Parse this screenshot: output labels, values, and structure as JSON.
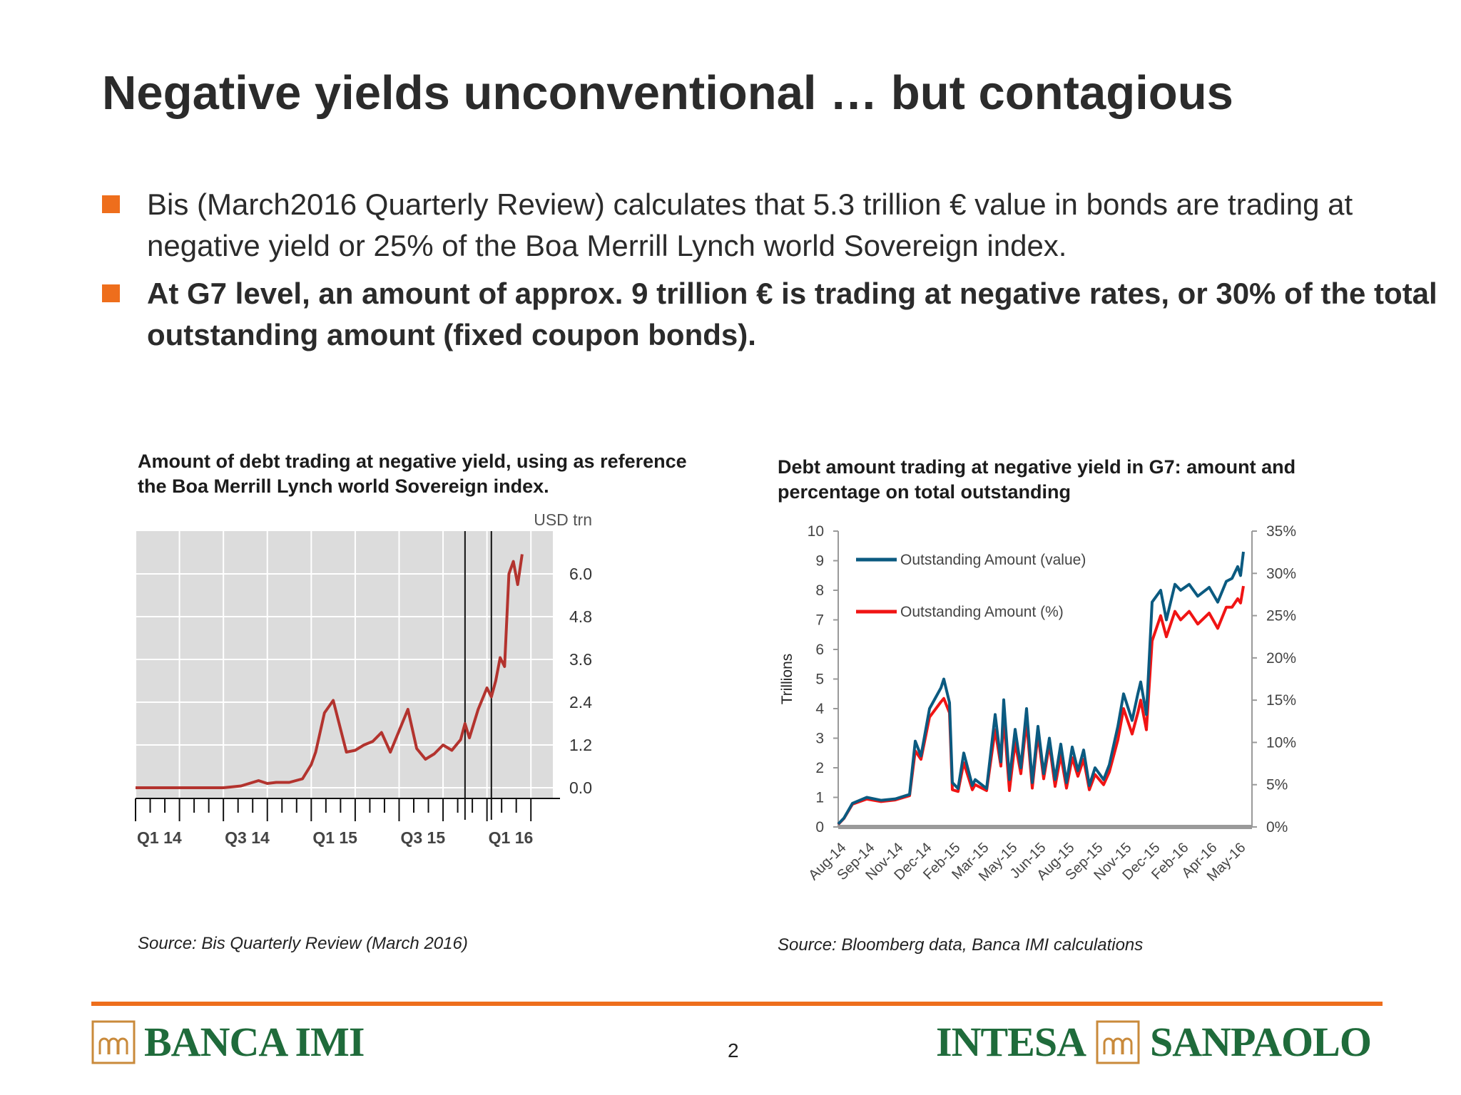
{
  "title": "Negative yields unconventional … but contagious",
  "bullets": [
    "Bis (March2016 Quarterly Review) calculates that 5.3 trillion € value in bonds are trading at negative yield or 25% of the Boa Merrill Lynch world Sovereign index.",
    "At G7 level, an amount of approx. 9 trillion € is trading at negative rates, or 30% of the total outstanding amount (fixed coupon bonds)."
  ],
  "colors": {
    "accent": "#ee6e1c",
    "bis_line": "#b3332e",
    "g7_value": "#0b5a80",
    "g7_pct": "#f01414",
    "logo_green": "#1f6b3b"
  },
  "chart_data": [
    {
      "type": "line",
      "title": "Amount of debt trading at negative yield, using as reference the Boa Merrill Lynch world Sovereign index.",
      "unit_label": "USD trn",
      "x_tick_labels": [
        "Q1 14",
        "Q3 14",
        "Q1 15",
        "Q3 15",
        "Q1 16"
      ],
      "y_ticks": [
        "0.0",
        "1.2",
        "2.4",
        "3.6",
        "4.8",
        "6.0"
      ],
      "ylim": [
        -0.3,
        7.2
      ],
      "xlim": [
        0,
        9.5
      ],
      "grid": true,
      "vertical_markers": [
        7.5,
        8.1
      ],
      "series": [
        {
          "x": [
            0,
            0.5,
            1.0,
            1.5,
            2.0,
            2.4,
            2.8,
            3.0,
            3.2,
            3.5,
            3.8,
            4.0,
            4.1,
            4.3,
            4.5,
            4.8,
            5.0,
            5.2,
            5.4,
            5.6,
            5.8,
            6.0,
            6.2,
            6.4,
            6.6,
            6.8,
            7.0,
            7.2,
            7.4,
            7.5,
            7.6,
            7.8,
            8.0,
            8.1,
            8.2,
            8.3,
            8.4,
            8.5,
            8.6,
            8.7,
            8.8
          ],
          "y": [
            0.0,
            0.0,
            0.0,
            0.0,
            0.0,
            0.05,
            0.2,
            0.12,
            0.15,
            0.15,
            0.25,
            0.65,
            1.0,
            2.1,
            2.45,
            1.0,
            1.05,
            1.2,
            1.3,
            1.55,
            1.0,
            1.6,
            2.2,
            1.1,
            0.8,
            0.95,
            1.2,
            1.05,
            1.35,
            1.8,
            1.4,
            2.2,
            2.8,
            2.55,
            3.0,
            3.65,
            3.4,
            6.0,
            6.35,
            5.7,
            6.55
          ]
        }
      ]
    },
    {
      "type": "line",
      "title": "Debt amount trading at negative yield in G7: amount and percentage on total outstanding",
      "ylabel": "Trillions",
      "x_tick_labels": [
        "Aug-14",
        "Sep-14",
        "Nov-14",
        "Dec-14",
        "Feb-15",
        "Mar-15",
        "May-15",
        "Jun-15",
        "Aug-15",
        "Sep-15",
        "Nov-15",
        "Dec-15",
        "Feb-16",
        "Apr-16",
        "May-16"
      ],
      "y_ticks": [
        "0",
        "1",
        "2",
        "3",
        "4",
        "5",
        "6",
        "7",
        "8",
        "9",
        "10"
      ],
      "y2_ticks": [
        "0%",
        "5%",
        "10%",
        "15%",
        "20%",
        "25%",
        "30%",
        "35%"
      ],
      "ylim": [
        0,
        10
      ],
      "y2lim": [
        0,
        35
      ],
      "xlim": [
        0,
        14.5
      ],
      "legend_position": "top-left",
      "series": [
        {
          "name": "Outstanding Amount (value)",
          "axis": "left",
          "x": [
            0,
            0.2,
            0.5,
            1.0,
            1.5,
            2.0,
            2.5,
            2.7,
            2.9,
            3.2,
            3.6,
            3.7,
            3.9,
            4.0,
            4.2,
            4.4,
            4.7,
            4.8,
            5.2,
            5.5,
            5.7,
            5.8,
            6.0,
            6.2,
            6.4,
            6.6,
            6.8,
            7.0,
            7.2,
            7.4,
            7.6,
            7.8,
            8.0,
            8.2,
            8.4,
            8.6,
            8.8,
            9.0,
            9.3,
            9.5,
            9.8,
            10.0,
            10.3,
            10.5,
            10.6,
            10.8,
            11.0,
            11.3,
            11.5,
            11.8,
            12.0,
            12.3,
            12.6,
            13.0,
            13.3,
            13.6,
            13.8,
            14.0,
            14.1,
            14.2
          ],
          "y": [
            0.1,
            0.3,
            0.8,
            1.0,
            0.9,
            0.95,
            1.1,
            2.9,
            2.4,
            4.0,
            4.7,
            5.0,
            4.2,
            1.5,
            1.3,
            2.5,
            1.4,
            1.6,
            1.3,
            3.8,
            2.2,
            4.3,
            1.6,
            3.3,
            2.0,
            4.0,
            1.5,
            3.4,
            1.8,
            3.0,
            1.6,
            2.8,
            1.5,
            2.7,
            1.9,
            2.6,
            1.4,
            2.0,
            1.6,
            2.1,
            3.4,
            4.5,
            3.6,
            4.5,
            4.9,
            3.8,
            7.6,
            8.0,
            7.0,
            8.2,
            8.0,
            8.2,
            7.8,
            8.1,
            7.6,
            8.3,
            8.4,
            8.8,
            8.5,
            9.3
          ]
        },
        {
          "name": "Outstanding Amount (%)",
          "axis": "right",
          "x": [
            0,
            0.2,
            0.5,
            1.0,
            1.5,
            2.0,
            2.5,
            2.7,
            2.9,
            3.2,
            3.6,
            3.7,
            3.9,
            4.0,
            4.2,
            4.4,
            4.7,
            4.8,
            5.2,
            5.5,
            5.7,
            5.8,
            6.0,
            6.2,
            6.4,
            6.6,
            6.8,
            7.0,
            7.2,
            7.4,
            7.6,
            7.8,
            8.0,
            8.2,
            8.4,
            8.6,
            8.8,
            9.0,
            9.3,
            9.5,
            9.8,
            10.0,
            10.3,
            10.5,
            10.6,
            10.8,
            11.0,
            11.3,
            11.5,
            11.8,
            12.0,
            12.3,
            12.6,
            13.0,
            13.3,
            13.6,
            13.8,
            14.0,
            14.1,
            14.2
          ],
          "y": [
            0.3,
            1.0,
            2.7,
            3.3,
            3.0,
            3.2,
            3.7,
            9.0,
            8.0,
            13.0,
            14.8,
            15.2,
            13.5,
            4.4,
            4.2,
            7.6,
            4.4,
            5.0,
            4.3,
            11.5,
            7.2,
            13.0,
            4.3,
            10.0,
            6.3,
            12.5,
            4.6,
            11.0,
            5.7,
            9.8,
            4.8,
            8.5,
            4.6,
            8.2,
            6.0,
            8.0,
            4.4,
            6.2,
            5.0,
            6.5,
            10.3,
            14.0,
            11.0,
            13.5,
            15.0,
            11.5,
            22.0,
            25.0,
            22.5,
            25.5,
            24.5,
            25.5,
            24.0,
            25.3,
            23.5,
            26.0,
            26.0,
            27.0,
            26.5,
            28.5
          ]
        }
      ]
    }
  ],
  "sources": [
    "Source: Bis Quarterly Review (March 2016)",
    "Source: Bloomberg data, Banca IMI calculations"
  ],
  "footer": {
    "left_brand": "BANCA IMI",
    "page_number": "2",
    "right_brand_a": "INTESA",
    "right_brand_b": "SANPAOLO"
  }
}
